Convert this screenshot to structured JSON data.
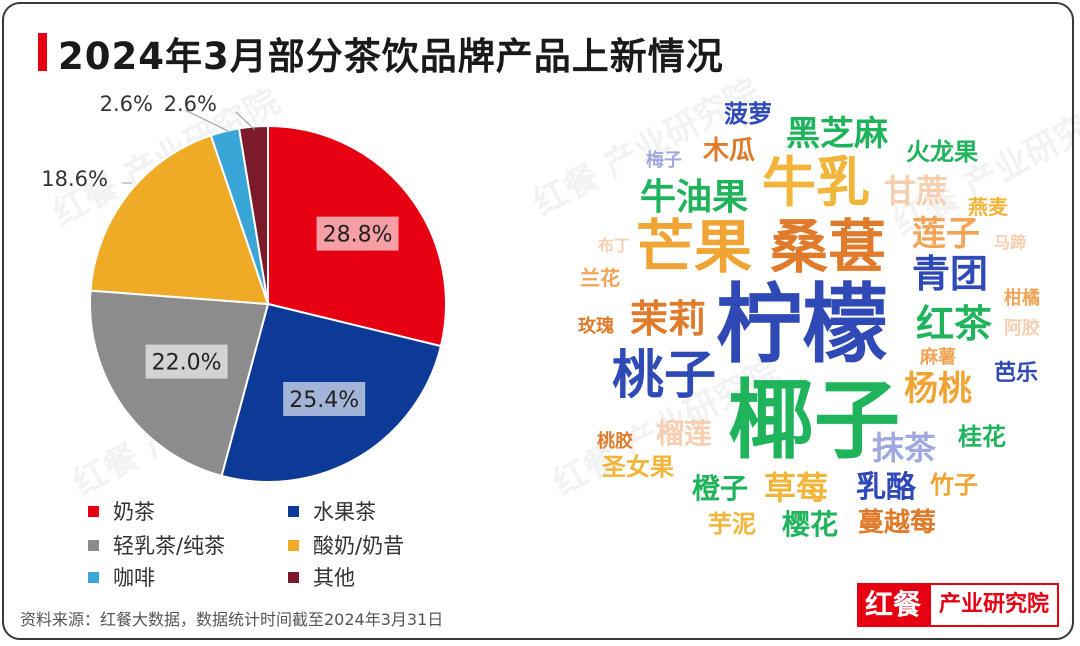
{
  "title": "2024年3月部分茶饮品牌产品上新情况",
  "source": "资料来源：红餐大数据，数据统计时间截至2024年3月31日",
  "logo": {
    "mark": "红餐",
    "text": "产业研究院"
  },
  "watermark": "红餐 产业研究院",
  "chart_data": {
    "type": "pie",
    "categories": [
      "奶茶",
      "水果茶",
      "轻乳茶/纯茶",
      "酸奶/奶昔",
      "咖啡",
      "其他"
    ],
    "values": [
      28.8,
      25.4,
      22.0,
      18.6,
      2.6,
      2.6
    ],
    "labels": [
      "28.8%",
      "25.4%",
      "22.0%",
      "18.6%",
      "2.6%",
      "2.6%"
    ],
    "colors": [
      "#e60012",
      "#0c3a96",
      "#8c8c8c",
      "#efaa26",
      "#3aa6d8",
      "#7a1a2a"
    ],
    "legend_position": "bottom-left"
  },
  "wordcloud": {
    "words": [
      "柠檬",
      "椰子",
      "芒果",
      "桑葚",
      "牛乳",
      "桃子",
      "青团",
      "红茶",
      "茉莉",
      "牛油果",
      "黑芝麻",
      "甘蔗",
      "莲子",
      "杨桃",
      "抹茶",
      "草莓",
      "乳酪",
      "樱花",
      "蔓越莓",
      "橙子",
      "圣女果",
      "芋泥",
      "榴莲",
      "桂花",
      "竹子",
      "木瓜",
      "菠萝",
      "火龙果",
      "燕麦",
      "马蹄",
      "兰花",
      "玫瑰",
      "布丁",
      "梅子",
      "柑橘",
      "阿胶",
      "麻薯",
      "芭乐",
      "桃胶"
    ]
  }
}
